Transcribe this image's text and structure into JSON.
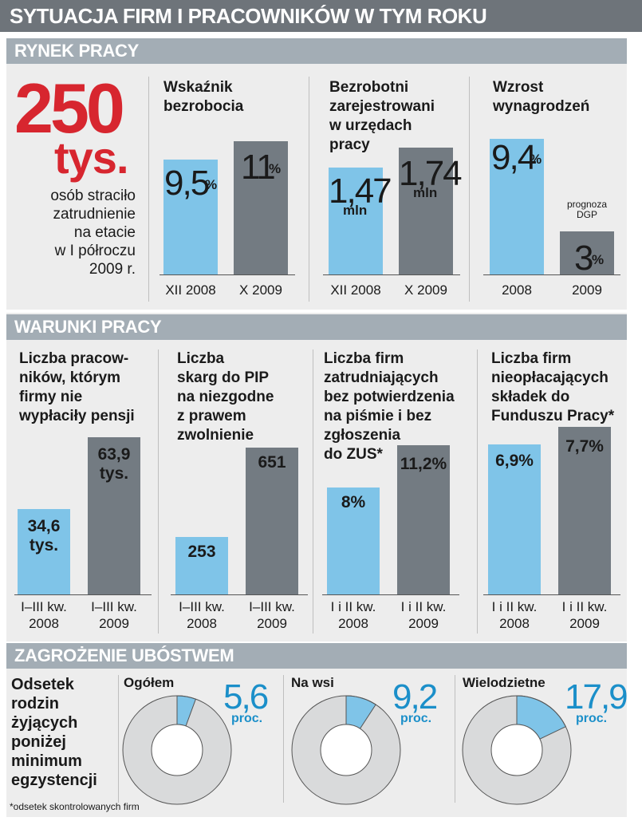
{
  "title": "SYTUACJA FIRM I PRACOWNIKÓW W TYM ROKU",
  "colors": {
    "blue": "#7fc4e8",
    "gray": "#737b82",
    "red": "#d7262f",
    "section": "#a3adb5",
    "pie_accent": "#1b8fc9"
  },
  "sections": {
    "rynek": "RYNEK PRACY",
    "warunki": "WARUNKI PRACY",
    "ubostwo": "ZAGROŻENIE UBÓSTWEM"
  },
  "headline": {
    "number": "250",
    "unit": "tys.",
    "text": [
      "osób straciło",
      "zatrudnienie",
      "na etacie",
      "w I półroczu",
      "2009 r."
    ]
  },
  "chart_data": [
    {
      "type": "bar",
      "title": "Wskaźnik bezrobocia",
      "categories": [
        "XII 2008",
        "X 2009"
      ],
      "values": [
        9.5,
        11
      ],
      "value_labels": [
        "9,5",
        "11"
      ],
      "unit": "%"
    },
    {
      "type": "bar",
      "title": "Bezrobotni zarejestrowani w urzędach pracy",
      "categories": [
        "XII 2008",
        "X 2009"
      ],
      "values": [
        1.47,
        1.74
      ],
      "value_labels": [
        "1,47",
        "1,74"
      ],
      "unit": "mln"
    },
    {
      "type": "bar",
      "title": "Wzrost wynagrodzeń",
      "categories": [
        "2008",
        "2009"
      ],
      "values": [
        9.4,
        3
      ],
      "value_labels": [
        "9,4",
        "3"
      ],
      "unit": "%",
      "annotation": [
        "prognoza",
        "DGP"
      ]
    },
    {
      "type": "bar",
      "title": "Liczba pracowników, którym firmy nie wypłaciły pensji",
      "title_lines": [
        "Liczba pracow-",
        "ników, którym",
        "firmy nie",
        "wypłaciły pensji"
      ],
      "categories": [
        "I–III kw. 2008",
        "I–III kw. 2009"
      ],
      "cat_lines": [
        [
          "I–III kw.",
          "2008"
        ],
        [
          "I–III kw.",
          "2009"
        ]
      ],
      "values": [
        34.6,
        63.9
      ],
      "value_labels": [
        "34,6",
        "63,9"
      ],
      "unit": "tys."
    },
    {
      "type": "bar",
      "title": "Liczba skarg do PIP na niezgodne z prawem zwolnienie",
      "title_lines": [
        "Liczba",
        "skarg do PIP",
        "na niezgodne",
        "z prawem",
        "zwolnienie"
      ],
      "categories": [
        "I–III kw. 2008",
        "I–III kw. 2009"
      ],
      "cat_lines": [
        [
          "I–III kw.",
          "2008"
        ],
        [
          "I–III kw.",
          "2009"
        ]
      ],
      "values": [
        253,
        651
      ],
      "value_labels": [
        "253",
        "651"
      ]
    },
    {
      "type": "bar",
      "title": "Liczba firm zatrudniających bez potwierdzenia na piśmie i bez zgłoszenia do ZUS*",
      "title_lines": [
        "Liczba firm",
        "zatrudniających",
        "bez potwierdzenia",
        "na piśmie i bez",
        "zgłoszenia",
        "do ZUS*"
      ],
      "categories": [
        "I i II kw. 2008",
        "I i II kw. 2009"
      ],
      "cat_lines": [
        [
          "I i II kw.",
          "2008"
        ],
        [
          "I i II kw.",
          "2009"
        ]
      ],
      "values": [
        8,
        11.2
      ],
      "value_labels": [
        "8%",
        "11,2%"
      ],
      "unit": "%"
    },
    {
      "type": "bar",
      "title": "Liczba firm nieopłacających składek do Funduszu Pracy*",
      "title_lines": [
        "Liczba firm",
        "nieopłacających",
        "składek do",
        "Funduszu Pracy*"
      ],
      "categories": [
        "I i II kw. 2008",
        "I i II kw. 2009"
      ],
      "cat_lines": [
        [
          "I i II kw.",
          "2008"
        ],
        [
          "I i II kw.",
          "2009"
        ]
      ],
      "values": [
        6.9,
        7.7
      ],
      "value_labels": [
        "6,9%",
        "7,7%"
      ],
      "unit": "%"
    },
    {
      "type": "pie",
      "title": "Odsetek rodzin żyjących poniżej minimum egzystencji",
      "title_lines": [
        "Odsetek",
        "rodzin",
        "żyjących",
        "poniżej",
        "minimum",
        "egzystencji"
      ],
      "slices": [
        {
          "name": "Ogółem",
          "value": 5.6,
          "value_label": "5,6"
        },
        {
          "name": "Na wsi",
          "value": 9.2,
          "value_label": "9,2"
        },
        {
          "name": "Wielodzietne",
          "value": 17.9,
          "value_label": "17,9"
        }
      ],
      "unit": "proc."
    }
  ],
  "footnote": "*odsetek skontrolowanych firm"
}
